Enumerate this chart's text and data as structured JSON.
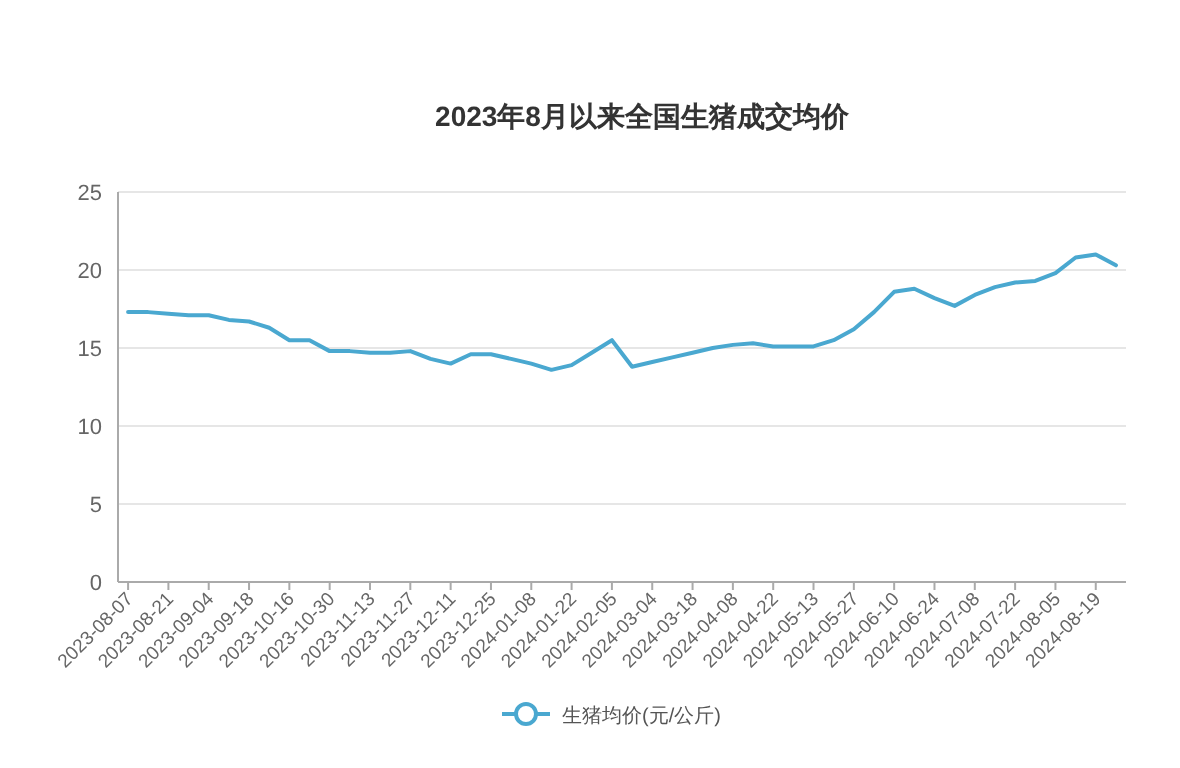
{
  "chart_data": {
    "type": "line",
    "title": "2023年8月以来全国生猪成交均价",
    "categories": [
      "2023-08-07",
      null,
      "2023-08-21",
      null,
      "2023-09-04",
      null,
      "2023-09-18",
      null,
      "2023-10-16",
      null,
      "2023-10-30",
      null,
      "2023-11-13",
      null,
      "2023-11-27",
      null,
      "2023-12-11",
      null,
      "2023-12-25",
      null,
      "2024-01-08",
      null,
      "2024-01-22",
      null,
      "2024-02-05",
      null,
      "2024-03-04",
      null,
      "2024-03-18",
      null,
      "2024-04-08",
      null,
      "2024-04-22",
      null,
      "2024-05-13",
      null,
      "2024-05-27",
      null,
      "2024-06-10",
      null,
      "2024-06-24",
      null,
      "2024-07-08",
      null,
      "2024-07-22",
      null,
      "2024-08-05",
      null,
      "2024-08-19",
      null
    ],
    "series": [
      {
        "name": "生猪均价(元/公斤)",
        "color": "#4aa8d0",
        "values": [
          17.3,
          17.3,
          17.2,
          17.1,
          17.1,
          16.8,
          16.7,
          16.3,
          15.5,
          15.5,
          14.8,
          14.8,
          14.7,
          14.7,
          14.8,
          14.3,
          14.0,
          14.6,
          14.6,
          14.3,
          14.0,
          13.6,
          13.9,
          14.7,
          15.5,
          13.8,
          14.1,
          14.4,
          14.7,
          15.0,
          15.2,
          15.3,
          15.1,
          15.1,
          15.1,
          15.5,
          16.2,
          17.3,
          18.6,
          18.8,
          18.2,
          17.7,
          18.4,
          18.9,
          19.2,
          19.3,
          19.8,
          20.8,
          21.0,
          20.3
        ]
      }
    ],
    "ylim": [
      0,
      25
    ],
    "yticks": [
      0,
      5,
      10,
      15,
      20,
      25
    ],
    "grid": "y",
    "legend": "bottom",
    "marker": "none",
    "line_style": "solid"
  }
}
